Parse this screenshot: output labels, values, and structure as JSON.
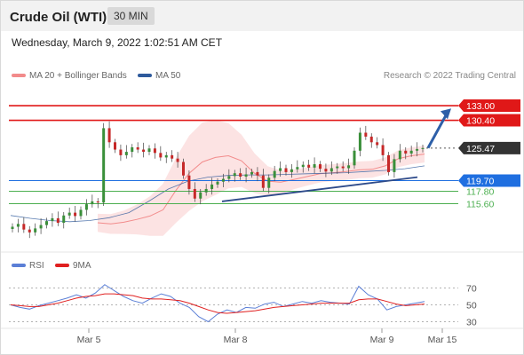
{
  "header": {
    "title": "Crude Oil (WTI)",
    "interval": "30 MIN",
    "datetime": "Wednesday, March 9, 2022 1:02:51 AM CET"
  },
  "legend": {
    "ma20_label": "MA 20 + Bollinger Bands",
    "ma50_label": "MA 50",
    "ma20_color": "#f28b8b",
    "ma50_color": "#2e5a9c",
    "credit": "Research © 2022 Trading Central"
  },
  "rsi_legend": {
    "rsi_label": "RSI",
    "ma_label": "9MA",
    "rsi_color": "#5b7fd6",
    "ma_color": "#e02020"
  },
  "colors": {
    "resistance": "#e01818",
    "support": "#1f6fe0",
    "target": "#2d5fa8",
    "current": "#333333",
    "minor_support": "#4caf50",
    "bollinger": "#fbdede",
    "up_candle": "#3a8f3a",
    "down_candle": "#c62828"
  },
  "chart_data": [
    {
      "type": "candlestick",
      "instrument": "Crude Oil (WTI)",
      "interval": "30 MIN",
      "x_ticks": [
        "Mar 5",
        "Mar 8",
        "Mar 9",
        "Mar 15"
      ],
      "ylim": [
        110,
        136
      ],
      "levels": [
        {
          "value": 133.0,
          "label": "133.00",
          "kind": "resistance"
        },
        {
          "value": 130.4,
          "label": "130.40",
          "kind": "resistance"
        },
        {
          "value": 125.47,
          "label": "125.47",
          "kind": "current"
        },
        {
          "value": 119.7,
          "label": "119.70",
          "kind": "support"
        },
        {
          "value": 117.8,
          "label": "117.80",
          "kind": "minor_support"
        },
        {
          "value": 115.6,
          "label": "115.60",
          "kind": "minor_support"
        }
      ],
      "candles_close": [
        111.5,
        112.0,
        111.0,
        110.5,
        111.2,
        111.8,
        112.5,
        113.0,
        112.2,
        113.5,
        114.0,
        113.4,
        114.5,
        115.5,
        116.0,
        115.8,
        129.0,
        126.5,
        125.2,
        124.2,
        124.8,
        125.6,
        125.2,
        124.8,
        125.4,
        124.6,
        123.8,
        124.2,
        123.6,
        123.0,
        120.6,
        118.2,
        116.5,
        117.6,
        118.2,
        119.0,
        119.5,
        120.0,
        120.5,
        121.0,
        120.4,
        120.8,
        121.2,
        120.6,
        118.4,
        120.2,
        121.4,
        121.9,
        121.2,
        121.7,
        122.1,
        122.5,
        122.0,
        122.6,
        121.8,
        121.3,
        121.9,
        122.2,
        121.9,
        122.4,
        125.0,
        128.2,
        127.5,
        126.5,
        126.0,
        124.2,
        121.2,
        123.5,
        125.0,
        124.5,
        125.0,
        125.3,
        125.47
      ],
      "trendline_support": [
        [
          0,
          116.9
        ],
        [
          1,
          120.0
        ]
      ],
      "target_arrow": {
        "from": 125.5,
        "to": 132.5
      },
      "ma20_approx": [
        112.2,
        112.0,
        112.3,
        112.8,
        113.4,
        114.5,
        118.0,
        121.0,
        123.0,
        123.8,
        124.1,
        123.2,
        121.0,
        119.6,
        119.4,
        119.9,
        120.4,
        120.9,
        121.1,
        121.3,
        121.6,
        121.7,
        122.3,
        123.6,
        124.1,
        124.4
      ],
      "ma50_approx": [
        113.5,
        113.0,
        112.6,
        112.4,
        112.6,
        113.1,
        114.0,
        116.0,
        118.2,
        119.6,
        120.3,
        120.6,
        120.7,
        120.7,
        120.8,
        120.9,
        121.0,
        121.1,
        121.3,
        121.5,
        121.8,
        122.3
      ]
    },
    {
      "type": "line",
      "name": "RSI",
      "ylim": [
        20,
        80
      ],
      "y_ticks": [
        30,
        50,
        70
      ],
      "series": [
        {
          "name": "RSI",
          "values": [
            50,
            47,
            45,
            49,
            52,
            55,
            58,
            62,
            58,
            64,
            74,
            67,
            60,
            55,
            52,
            58,
            63,
            60,
            52,
            47,
            36,
            30,
            39,
            44,
            41,
            47,
            46,
            51,
            53,
            48,
            51,
            54,
            52,
            55,
            53,
            52,
            51,
            72,
            62,
            57,
            44,
            48,
            50,
            52,
            54
          ]
        },
        {
          "name": "9MA",
          "values": [
            50,
            49,
            48,
            48,
            50,
            52,
            55,
            58,
            60,
            61,
            63,
            63,
            62,
            61,
            58,
            57,
            57,
            56,
            55,
            52,
            48,
            44,
            41,
            40,
            41,
            42,
            43,
            45,
            47,
            48,
            49,
            50,
            51,
            52,
            52,
            52,
            52,
            56,
            57,
            57,
            54,
            51,
            49,
            50,
            51
          ]
        }
      ]
    }
  ]
}
